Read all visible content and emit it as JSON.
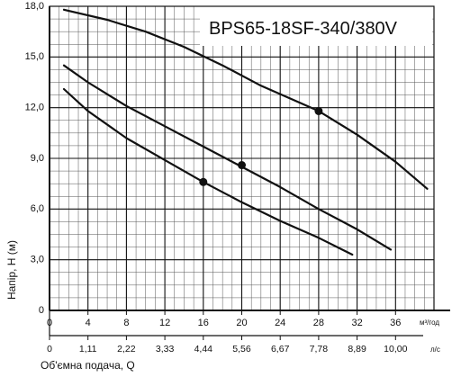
{
  "chart_data": {
    "type": "line",
    "title": "BPS65-18SF-340/380V",
    "xlabel": "Об'ємна подача, Q",
    "ylabel": "Напір, H (м)",
    "x_unit": "м³/год",
    "x2_unit": "л/с",
    "xlim": [
      0,
      40
    ],
    "ylim": [
      0,
      18
    ],
    "x_ticks": [
      "0",
      "4",
      "8",
      "12",
      "16",
      "20",
      "24",
      "28",
      "32",
      "36"
    ],
    "x2_ticks": [
      "0",
      "1,11",
      "2,22",
      "3,33",
      "4,44",
      "5,56",
      "6,67",
      "7,78",
      "8,89",
      "10,00"
    ],
    "y_ticks": [
      "0",
      "3,0",
      "6,0",
      "9,0",
      "12,0",
      "15,0",
      "18,0"
    ],
    "grid": true,
    "series": [
      {
        "x": [
          1.5,
          6,
          10,
          14,
          18,
          22,
          26,
          28,
          32,
          36,
          39.3
        ],
        "y": [
          17.8,
          17.2,
          16.5,
          15.6,
          14.5,
          13.3,
          12.3,
          11.8,
          10.4,
          8.8,
          7.2
        ]
      },
      {
        "x": [
          1.5,
          4,
          8,
          12,
          16,
          20,
          24,
          28,
          32,
          35.5
        ],
        "y": [
          14.5,
          13.5,
          12.1,
          10.9,
          9.7,
          8.5,
          7.3,
          6.0,
          4.8,
          3.6
        ]
      },
      {
        "x": [
          1.5,
          4,
          8,
          12,
          16,
          20,
          24,
          28,
          31.5
        ],
        "y": [
          13.1,
          11.8,
          10.2,
          8.9,
          7.6,
          6.4,
          5.3,
          4.3,
          3.3
        ]
      }
    ],
    "markers": [
      {
        "x": 28,
        "y": 11.8
      },
      {
        "x": 20,
        "y": 8.6
      },
      {
        "x": 16,
        "y": 7.6
      }
    ]
  }
}
